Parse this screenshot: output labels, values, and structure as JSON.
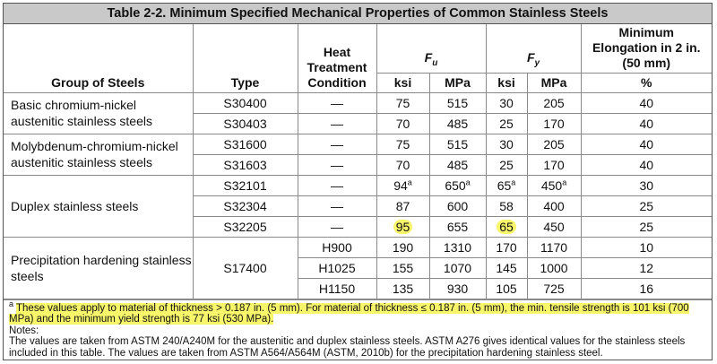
{
  "title": "Table 2-2.   Minimum Specified Mechanical Properties of Common Stainless Steels",
  "headers": {
    "group": "Group of Steels",
    "type": "Type",
    "heat": "Heat Treatment Condition",
    "fu": "F",
    "fu_sub": "u",
    "fy": "F",
    "fy_sub": "y",
    "elong": "Minimum Elongation in 2 in. (50 mm)",
    "ksi": "ksi",
    "mpa": "MPa",
    "pct": "%"
  },
  "dash": "—",
  "groups": {
    "basic": "Basic chromium-nickel austenitic stainless steels",
    "moly": "Molybdenum-chromium-nickel austenitic stainless steels",
    "duplex": "Duplex stainless steels",
    "precip": "Precipitation hardening stainless steels"
  },
  "rows": [
    {
      "type": "S30400",
      "fu_ksi": "75",
      "fu_mpa": "515",
      "fy_ksi": "30",
      "fy_mpa": "205",
      "elong": "40"
    },
    {
      "type": "S30403",
      "fu_ksi": "70",
      "fu_mpa": "485",
      "fy_ksi": "25",
      "fy_mpa": "170",
      "elong": "40"
    },
    {
      "type": "S31600",
      "fu_ksi": "75",
      "fu_mpa": "515",
      "fy_ksi": "30",
      "fy_mpa": "205",
      "elong": "40"
    },
    {
      "type": "S31603",
      "fu_ksi": "70",
      "fu_mpa": "485",
      "fy_ksi": "25",
      "fy_mpa": "170",
      "elong": "40"
    },
    {
      "type": "S32101",
      "fu_ksi": "94",
      "fu_mpa": "650",
      "fy_ksi": "65",
      "fy_mpa": "450",
      "elong": "30",
      "footnote": "a"
    },
    {
      "type": "S32304",
      "fu_ksi": "87",
      "fu_mpa": "600",
      "fy_ksi": "58",
      "fy_mpa": "400",
      "elong": "25"
    },
    {
      "type": "S32205",
      "fu_ksi": "95",
      "fu_mpa": "655",
      "fy_ksi": "65",
      "fy_mpa": "450",
      "elong": "25"
    }
  ],
  "precip": {
    "type": "S17400",
    "rows": [
      {
        "heat": "H900",
        "fu_ksi": "190",
        "fu_mpa": "1310",
        "fy_ksi": "170",
        "fy_mpa": "1170",
        "elong": "10"
      },
      {
        "heat": "H1025",
        "fu_ksi": "155",
        "fu_mpa": "1070",
        "fy_ksi": "145",
        "fy_mpa": "1000",
        "elong": "12"
      },
      {
        "heat": "H1150",
        "fu_ksi": "135",
        "fu_mpa": "930",
        "fy_ksi": "105",
        "fy_mpa": "725",
        "elong": "16"
      }
    ]
  },
  "notes": {
    "a_mark": "a",
    "a_text": "These values apply to material of thickness > 0.187 in. (5 mm). For material of thickness ≤ 0.187 in. (5 mm), the min. tensile strength is 101 ksi (700 MPa) and the minimum yield strength is 77 ksi (530 MPa).",
    "label": "Notes:",
    "text": "The values are taken from ASTM 240/A240M for the austenitic and duplex stainless steels. ASTM A276 gives identical values for the stainless steels included in this table. The values are taken from ASTM A564/A564M (ASTM, 2010b) for the precipitation hardening stainless steel."
  },
  "highlight_color": "#f7f56a"
}
